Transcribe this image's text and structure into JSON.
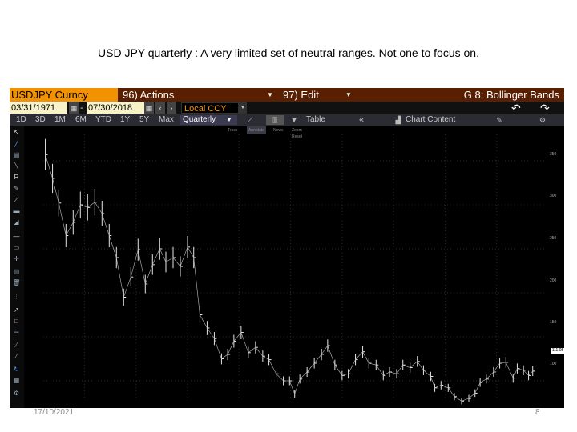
{
  "slide": {
    "title": "USD JPY quarterly : A very limited set of neutral ranges. Not one to focus on.",
    "footer_date": "17/10/2021",
    "page_number": "8"
  },
  "terminal": {
    "ticker": "USDJPY Curncy",
    "actions": "96) Actions",
    "edit": "97) Edit",
    "function": "G 8: Bollinger Bands",
    "start_date": "03/31/1971",
    "end_date": "07/30/2018",
    "currency": "Local CCY",
    "periods": [
      "1D",
      "3D",
      "1M",
      "6M",
      "YTD",
      "1Y",
      "5Y",
      "Max"
    ],
    "frequency": "Quarterly",
    "table_label": "Table",
    "chart_content_label": "Chart Content",
    "subtoolbar": [
      "Track",
      "Annotate",
      "News",
      "Zoom"
    ],
    "subtoolbar2": "Reset",
    "last_price_label": "111.05",
    "y_ticks": [
      "350",
      "300",
      "250",
      "200",
      "150",
      "100"
    ]
  },
  "colors": {
    "header_orange": "#f39200",
    "header_dark": "#5a1f00",
    "chart_bg": "#000000",
    "price_line": "#e6e6e6"
  },
  "chart_data": {
    "type": "line",
    "title": "",
    "xlabel": "",
    "ylabel": "",
    "ylim": [
      80,
      380
    ],
    "xlim": [
      1971,
      2018.6
    ],
    "grid": true,
    "series": [
      {
        "values": [
          [
            1971.2,
            357
          ],
          [
            1971.9,
            330
          ],
          [
            1972.5,
            302
          ],
          [
            1973.2,
            265
          ],
          [
            1973.9,
            280
          ],
          [
            1974.6,
            300
          ],
          [
            1975.3,
            297
          ],
          [
            1976.0,
            303
          ],
          [
            1976.7,
            290
          ],
          [
            1977.4,
            265
          ],
          [
            1978.1,
            240
          ],
          [
            1978.8,
            195
          ],
          [
            1979.5,
            218
          ],
          [
            1980.2,
            249
          ],
          [
            1980.9,
            210
          ],
          [
            1981.6,
            232
          ],
          [
            1982.3,
            250
          ],
          [
            1982.9,
            235
          ],
          [
            1983.6,
            240
          ],
          [
            1984.3,
            230
          ],
          [
            1985.0,
            252
          ],
          [
            1985.6,
            240
          ],
          [
            1986.2,
            175
          ],
          [
            1986.9,
            160
          ],
          [
            1987.6,
            148
          ],
          [
            1988.3,
            125
          ],
          [
            1988.9,
            130
          ],
          [
            1989.5,
            145
          ],
          [
            1990.2,
            155
          ],
          [
            1990.9,
            132
          ],
          [
            1991.6,
            138
          ],
          [
            1992.3,
            128
          ],
          [
            1992.9,
            124
          ],
          [
            1993.6,
            108
          ],
          [
            1994.3,
            100
          ],
          [
            1994.9,
            100
          ],
          [
            1995.4,
            85
          ],
          [
            1995.9,
            102
          ],
          [
            1996.6,
            110
          ],
          [
            1997.3,
            120
          ],
          [
            1998.0,
            130
          ],
          [
            1998.6,
            140
          ],
          [
            1999.3,
            118
          ],
          [
            2000.0,
            106
          ],
          [
            2000.6,
            108
          ],
          [
            2001.3,
            124
          ],
          [
            2002.0,
            133
          ],
          [
            2002.6,
            120
          ],
          [
            2003.3,
            118
          ],
          [
            2004.0,
            106
          ],
          [
            2004.6,
            110
          ],
          [
            2005.3,
            108
          ],
          [
            2005.9,
            118
          ],
          [
            2006.6,
            115
          ],
          [
            2007.3,
            122
          ],
          [
            2007.9,
            112
          ],
          [
            2008.6,
            105
          ],
          [
            2009.0,
            92
          ],
          [
            2009.6,
            95
          ],
          [
            2010.3,
            92
          ],
          [
            2010.9,
            82
          ],
          [
            2011.6,
            77
          ],
          [
            2012.3,
            80
          ],
          [
            2012.9,
            86
          ],
          [
            2013.4,
            98
          ],
          [
            2014.0,
            102
          ],
          [
            2014.7,
            110
          ],
          [
            2015.3,
            120
          ],
          [
            2015.9,
            121
          ],
          [
            2016.6,
            103
          ],
          [
            2017.0,
            114
          ],
          [
            2017.6,
            112
          ],
          [
            2018.1,
            106
          ],
          [
            2018.5,
            111
          ]
        ]
      }
    ]
  }
}
